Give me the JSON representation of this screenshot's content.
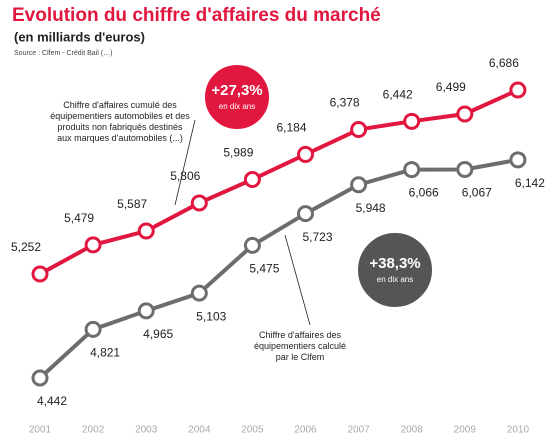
{
  "chart_data": {
    "type": "line",
    "title": "Evolution du chiffre d'affaires du marché",
    "subtitle": "(en milliards d'euros)",
    "source": "Source : Clfem - Crédit Bail (…)",
    "x": [
      "2001",
      "2002",
      "2003",
      "2004",
      "2005",
      "2006",
      "2007",
      "2008",
      "2009",
      "2010"
    ],
    "series": [
      {
        "name": "Chiffre d'affaires cumulé des équipementiers automobiles et des produits non fabriqués destinés aux marques d'automobiles (...)",
        "color": "#e2173f",
        "values": [
          5.252,
          5.479,
          5.587,
          5.806,
          5.989,
          6.184,
          6.378,
          6.442,
          6.499,
          6.686
        ],
        "value_labels": [
          "5,252",
          "5,479",
          "5,587",
          "5,806",
          "5,989",
          "6,184",
          "6,378",
          "6,442",
          "6,499",
          "6,686"
        ]
      },
      {
        "name": "Chiffre d'affaires des équipementiers calculé par le Clfem",
        "color": "#6d6d6d",
        "values": [
          4.442,
          4.821,
          4.965,
          5.103,
          5.475,
          5.723,
          5.948,
          6.066,
          6.067,
          6.142
        ],
        "value_labels": [
          "4,442",
          "4,821",
          "4,965",
          "5,103",
          "5,475",
          "5,723",
          "5,948",
          "6,066",
          "6,067",
          "6,142"
        ]
      }
    ],
    "annotations": [
      {
        "text": "+27,3%",
        "subtext": "en dix ans",
        "color": "#e2173f"
      },
      {
        "text": "+38,3%",
        "subtext": "en dix ans",
        "color": "#555555"
      }
    ]
  }
}
